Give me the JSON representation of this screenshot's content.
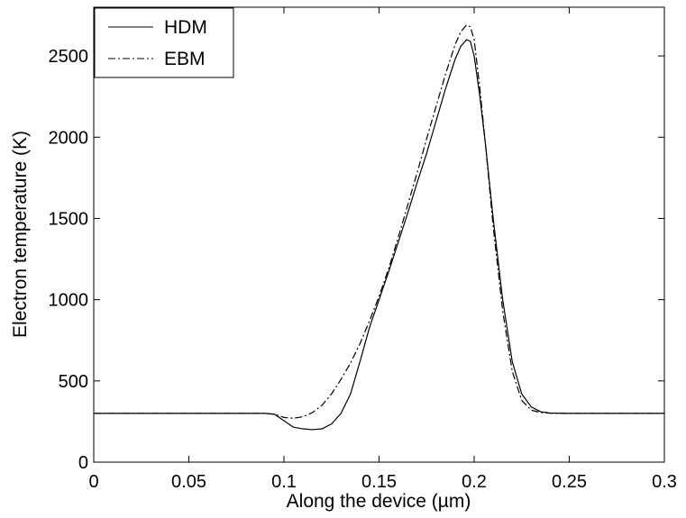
{
  "chart_data": {
    "type": "line",
    "xlabel": "Along the device (µm)",
    "ylabel": "Electron temperature (K)",
    "xlim": [
      0,
      0.3
    ],
    "ylim": [
      0,
      2800
    ],
    "xticks": [
      0,
      0.05,
      0.1,
      0.15,
      0.2,
      0.25,
      0.3
    ],
    "xtick_labels": [
      "0",
      "0.05",
      "0.1",
      "0.15",
      "0.2",
      "0.25",
      "0.3"
    ],
    "yticks": [
      0,
      500,
      1000,
      1500,
      2000,
      2500
    ],
    "ytick_labels": [
      "0",
      "500",
      "1000",
      "1500",
      "2000",
      "2500"
    ],
    "grid": false,
    "legend_position": "top-left",
    "series": [
      {
        "name": "HDM",
        "style": "solid",
        "color": "#000000",
        "x": [
          0,
          0.05,
          0.09,
          0.095,
          0.1,
          0.105,
          0.11,
          0.115,
          0.12,
          0.125,
          0.13,
          0.135,
          0.14,
          0.145,
          0.15,
          0.155,
          0.16,
          0.165,
          0.17,
          0.175,
          0.18,
          0.185,
          0.19,
          0.193,
          0.196,
          0.198,
          0.2,
          0.203,
          0.206,
          0.21,
          0.215,
          0.22,
          0.225,
          0.23,
          0.235,
          0.24,
          0.25,
          0.3
        ],
        "y": [
          300,
          300,
          300,
          295,
          255,
          215,
          205,
          200,
          205,
          235,
          300,
          420,
          620,
          830,
          1000,
          1170,
          1350,
          1530,
          1720,
          1900,
          2100,
          2300,
          2480,
          2560,
          2600,
          2590,
          2500,
          2250,
          1950,
          1500,
          1000,
          620,
          420,
          340,
          310,
          302,
          300,
          300
        ]
      },
      {
        "name": "EBM",
        "style": "dash-dot",
        "color": "#000000",
        "x": [
          0,
          0.05,
          0.09,
          0.095,
          0.1,
          0.105,
          0.11,
          0.115,
          0.12,
          0.125,
          0.13,
          0.135,
          0.14,
          0.145,
          0.15,
          0.155,
          0.16,
          0.165,
          0.17,
          0.175,
          0.18,
          0.185,
          0.19,
          0.193,
          0.196,
          0.198,
          0.2,
          0.203,
          0.206,
          0.21,
          0.215,
          0.22,
          0.225,
          0.23,
          0.235,
          0.24,
          0.25,
          0.3
        ],
        "y": [
          300,
          300,
          300,
          295,
          275,
          270,
          280,
          305,
          350,
          420,
          510,
          610,
          730,
          870,
          1020,
          1190,
          1380,
          1580,
          1780,
          1990,
          2190,
          2390,
          2570,
          2650,
          2690,
          2680,
          2600,
          2300,
          1950,
          1450,
          930,
          560,
          380,
          320,
          305,
          301,
          300,
          300
        ]
      }
    ]
  }
}
